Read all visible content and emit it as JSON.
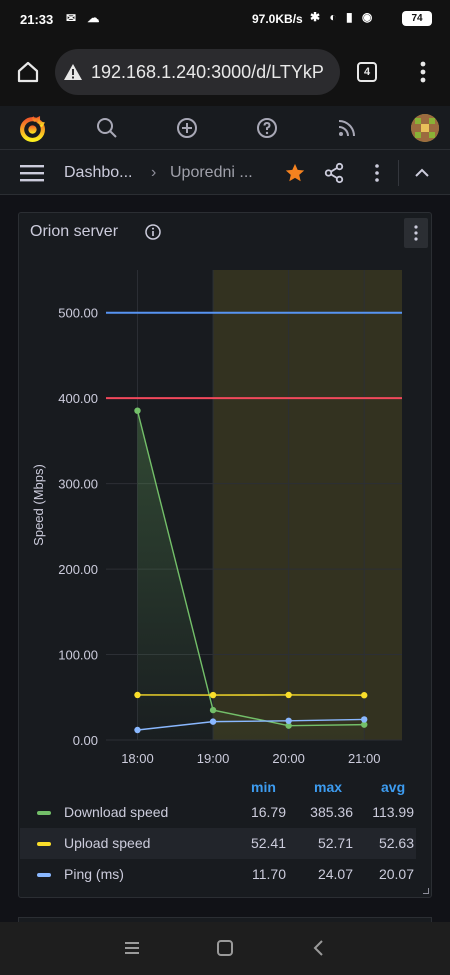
{
  "status_bar": {
    "time": "21:33",
    "net_speed": "97.0KB/s",
    "battery": "74"
  },
  "browser": {
    "url": "192.168.1.240:3000/d/LTYkP",
    "tab_count": "4"
  },
  "grafana": {
    "breadcrumb_root": "Dashbo...",
    "breadcrumb_separator": "›",
    "breadcrumb_current": "Uporedni ..."
  },
  "panel": {
    "title": "Orion server",
    "legend": {
      "headers": [
        "min",
        "max",
        "avg"
      ],
      "rows": [
        {
          "name": "Download speed",
          "min": "16.79",
          "max": "385.36",
          "avg": "113.99",
          "color": "#73bf69"
        },
        {
          "name": "Upload speed",
          "min": "52.41",
          "max": "52.71",
          "avg": "52.63",
          "color": "#fade2a"
        },
        {
          "name": "Ping (ms)",
          "min": "11.70",
          "max": "24.07",
          "avg": "20.07",
          "color": "#8ab8ff"
        }
      ]
    }
  },
  "chart_data": {
    "type": "line",
    "title": "Orion server",
    "ylabel": "Speed (Mbps)",
    "ylim": [
      0,
      550
    ],
    "yticks": [
      "0.00",
      "100.00",
      "200.00",
      "300.00",
      "400.00",
      "500.00"
    ],
    "xticks": [
      "18:00",
      "19:00",
      "20:00",
      "21:00"
    ],
    "x_range": [
      "17:35",
      "21:30"
    ],
    "threshold_lines": [
      {
        "value": 500,
        "color": "#5794f2"
      },
      {
        "value": 400,
        "color": "#f2495c"
      }
    ],
    "shaded_region": {
      "from": "19:00",
      "to": "21:30",
      "color": "#fade2a"
    },
    "series": [
      {
        "name": "Download speed",
        "color": "#73bf69",
        "x": [
          "18:00",
          "19:00",
          "20:00",
          "21:00"
        ],
        "values": [
          385.36,
          35,
          16.79,
          18
        ]
      },
      {
        "name": "Upload speed",
        "color": "#fade2a",
        "x": [
          "18:00",
          "19:00",
          "20:00",
          "21:00"
        ],
        "values": [
          52.71,
          52.6,
          52.7,
          52.41
        ]
      },
      {
        "name": "Ping (ms)",
        "color": "#8ab8ff",
        "x": [
          "18:00",
          "19:00",
          "20:00",
          "21:00"
        ],
        "values": [
          11.7,
          21.5,
          22.5,
          24.07
        ]
      }
    ],
    "grid": true,
    "legend_position": "bottom"
  }
}
